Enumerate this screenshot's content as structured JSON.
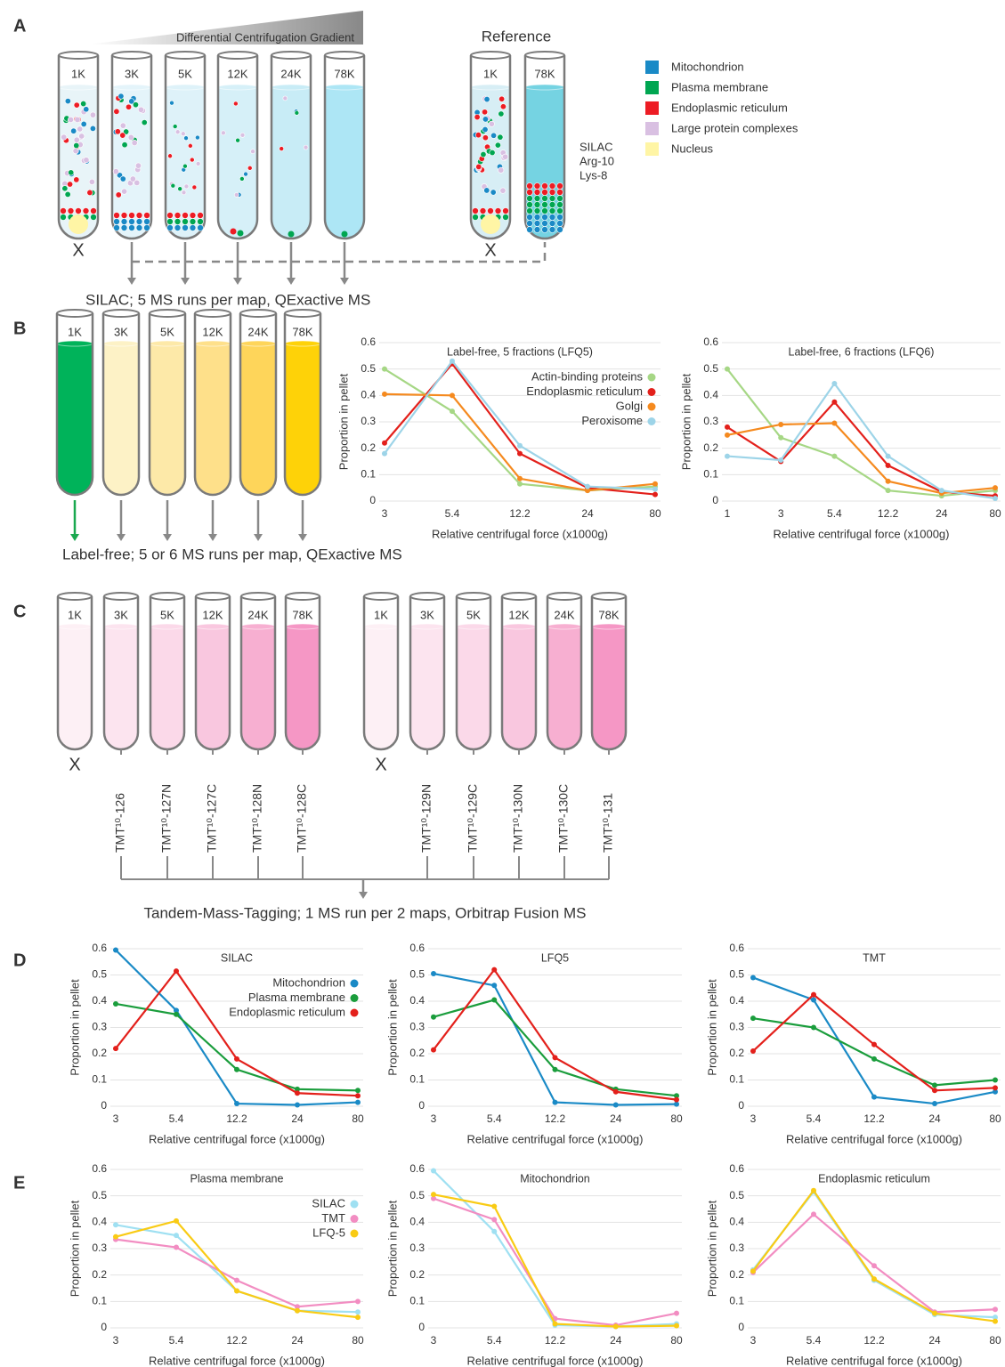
{
  "panel_labels": [
    "A",
    "B",
    "C",
    "D",
    "E"
  ],
  "panel_a": {
    "gradient_label": "Differential Centrifugation Gradient",
    "reference_label": "Reference",
    "tubes": [
      "1K",
      "3K",
      "5K",
      "12K",
      "24K",
      "78K"
    ],
    "reference_tubes": [
      "1K",
      "78K"
    ],
    "excluded_mark": "X",
    "legend": [
      {
        "name": "Mitochondrion",
        "color": "#1a8ac6"
      },
      {
        "name": "Plasma membrane",
        "color": "#00a651"
      },
      {
        "name": "Endoplasmic reticulum",
        "color": "#ed1c24"
      },
      {
        "name": "Large protein complexes",
        "color": "#d9c0e2"
      },
      {
        "name": "Nucleus",
        "color": "#fff5a5"
      }
    ],
    "silac_label": [
      "SILAC",
      "Arg-10",
      "Lys-8"
    ],
    "caption": "SILAC; 5 MS runs per map, QExactive MS"
  },
  "panel_b": {
    "tubes": [
      "1K",
      "3K",
      "5K",
      "12K",
      "24K",
      "78K"
    ],
    "caption": "Label-free; 5 or 6 MS runs per map, QExactive MS"
  },
  "panel_c": {
    "tubes_left": [
      "1K",
      "3K",
      "5K",
      "12K",
      "24K",
      "78K"
    ],
    "tubes_right": [
      "1K",
      "3K",
      "5K",
      "12K",
      "24K",
      "78K"
    ],
    "excluded_mark": "X",
    "tmt_left": [
      "TMT¹⁰-126",
      "TMT¹⁰-127N",
      "TMT¹⁰-127C",
      "TMT¹⁰-128N",
      "TMT¹⁰-128C"
    ],
    "tmt_right": [
      "TMT¹⁰-129N",
      "TMT¹⁰-129C",
      "TMT¹⁰-130N",
      "TMT¹⁰-130C",
      "TMT¹⁰-131"
    ],
    "caption": "Tandem-Mass-Tagging; 1 MS run per 2 maps, Orbitrap Fusion MS"
  },
  "chart_data": [
    {
      "type": "line",
      "title": "Label-free, 5 fractions (LFQ5)",
      "xlabel": "Relative centrifugal force (x1000g)",
      "ylabel": "Proportion in pellet",
      "categories": [
        "3",
        "5.4",
        "12.2",
        "24",
        "80"
      ],
      "ylim": [
        0,
        0.6
      ],
      "yticks": [
        0,
        0.1,
        0.2,
        0.3,
        0.4,
        0.5,
        0.6
      ],
      "grid": true,
      "legend": "upper right",
      "series": [
        {
          "name": "Actin-binding proteins",
          "color": "#a6d785",
          "values": [
            0.5,
            0.34,
            0.065,
            0.04,
            0.055
          ]
        },
        {
          "name": "Endoplasmic reticulum",
          "color": "#e3201b",
          "values": [
            0.22,
            0.52,
            0.18,
            0.05,
            0.025
          ]
        },
        {
          "name": "Golgi",
          "color": "#f58a1f",
          "values": [
            0.405,
            0.4,
            0.085,
            0.04,
            0.065
          ]
        },
        {
          "name": "Peroxisome",
          "color": "#9dd4e8",
          "values": [
            0.18,
            0.53,
            0.21,
            0.055,
            0.045
          ]
        }
      ]
    },
    {
      "type": "line",
      "title": "Label-free, 6 fractions (LFQ6)",
      "xlabel": "Relative centrifugal force (x1000g)",
      "ylabel": "Proportion in pellet",
      "categories": [
        "1",
        "3",
        "5.4",
        "12.2",
        "24",
        "80"
      ],
      "ylim": [
        0,
        0.6
      ],
      "yticks": [
        0,
        0.1,
        0.2,
        0.3,
        0.4,
        0.5,
        0.6
      ],
      "grid": true,
      "series": [
        {
          "color": "#a6d785",
          "values": [
            0.5,
            0.24,
            0.17,
            0.04,
            0.02,
            0.04
          ]
        },
        {
          "color": "#e3201b",
          "values": [
            0.28,
            0.15,
            0.375,
            0.135,
            0.035,
            0.02
          ]
        },
        {
          "color": "#f58a1f",
          "values": [
            0.25,
            0.29,
            0.295,
            0.075,
            0.03,
            0.05
          ]
        },
        {
          "color": "#9dd4e8",
          "values": [
            0.17,
            0.155,
            0.445,
            0.17,
            0.04,
            0.01
          ]
        }
      ]
    },
    {
      "type": "line",
      "title": "SILAC",
      "xlabel": "Relative centrifugal force (x1000g)",
      "ylabel": "Proportion in pellet",
      "categories": [
        "3",
        "5.4",
        "12.2",
        "24",
        "80"
      ],
      "ylim": [
        0,
        0.6
      ],
      "yticks": [
        0,
        0.1,
        0.2,
        0.3,
        0.4,
        0.5,
        0.6
      ],
      "grid": true,
      "legend": "upper right",
      "series": [
        {
          "name": "Mitochondrion",
          "color": "#1a8ac6",
          "values": [
            0.595,
            0.365,
            0.01,
            0.005,
            0.015
          ]
        },
        {
          "name": "Plasma membrane",
          "color": "#1a9d3c",
          "values": [
            0.39,
            0.35,
            0.14,
            0.065,
            0.06
          ]
        },
        {
          "name": "Endoplasmic reticulum",
          "color": "#e3201b",
          "values": [
            0.22,
            0.515,
            0.18,
            0.05,
            0.04
          ]
        }
      ]
    },
    {
      "type": "line",
      "title": "LFQ5",
      "xlabel": "Relative centrifugal force (x1000g)",
      "ylabel": "Proportion in pellet",
      "categories": [
        "3",
        "5.4",
        "12.2",
        "24",
        "80"
      ],
      "ylim": [
        0,
        0.6
      ],
      "yticks": [
        0,
        0.1,
        0.2,
        0.3,
        0.4,
        0.5,
        0.6
      ],
      "grid": true,
      "series": [
        {
          "color": "#1a8ac6",
          "values": [
            0.505,
            0.46,
            0.015,
            0.005,
            0.008
          ]
        },
        {
          "color": "#1a9d3c",
          "values": [
            0.34,
            0.405,
            0.14,
            0.065,
            0.04
          ]
        },
        {
          "color": "#e3201b",
          "values": [
            0.215,
            0.52,
            0.185,
            0.055,
            0.025
          ]
        }
      ]
    },
    {
      "type": "line",
      "title": "TMT",
      "xlabel": "Relative centrifugal force (x1000g)",
      "ylabel": "Proportion in pellet",
      "categories": [
        "3",
        "5.4",
        "12.2",
        "24",
        "80"
      ],
      "ylim": [
        0,
        0.6
      ],
      "yticks": [
        0,
        0.1,
        0.2,
        0.3,
        0.4,
        0.5,
        0.6
      ],
      "grid": true,
      "series": [
        {
          "color": "#1a8ac6",
          "values": [
            0.49,
            0.405,
            0.035,
            0.01,
            0.055
          ]
        },
        {
          "color": "#1a9d3c",
          "values": [
            0.335,
            0.3,
            0.18,
            0.08,
            0.1
          ]
        },
        {
          "color": "#e3201b",
          "values": [
            0.21,
            0.425,
            0.235,
            0.06,
            0.07
          ]
        }
      ]
    },
    {
      "type": "line",
      "title": "Plasma membrane",
      "xlabel": "Relative centrifugal force (x1000g)",
      "ylabel": "Proportion in pellet",
      "categories": [
        "3",
        "5.4",
        "12.2",
        "24",
        "80"
      ],
      "ylim": [
        0,
        0.6
      ],
      "yticks": [
        0,
        0.1,
        0.2,
        0.3,
        0.4,
        0.5,
        0.6
      ],
      "grid": true,
      "legend": "upper right",
      "series": [
        {
          "name": "SILAC",
          "color": "#9fe0f2",
          "values": [
            0.39,
            0.35,
            0.14,
            0.065,
            0.06
          ]
        },
        {
          "name": "TMT",
          "color": "#f28dc2",
          "values": [
            0.335,
            0.305,
            0.18,
            0.08,
            0.1
          ]
        },
        {
          "name": "LFQ-5",
          "color": "#f9cb14",
          "values": [
            0.345,
            0.405,
            0.14,
            0.065,
            0.04
          ]
        }
      ]
    },
    {
      "type": "line",
      "title": "Mitochondrion",
      "xlabel": "Relative centrifugal force (x1000g)",
      "ylabel": "Proportion in pellet",
      "categories": [
        "3",
        "5.4",
        "12.2",
        "24",
        "80"
      ],
      "ylim": [
        0,
        0.6
      ],
      "yticks": [
        0,
        0.1,
        0.2,
        0.3,
        0.4,
        0.5,
        0.6
      ],
      "grid": true,
      "series": [
        {
          "color": "#9fe0f2",
          "values": [
            0.595,
            0.365,
            0.01,
            0.005,
            0.015
          ]
        },
        {
          "color": "#f28dc2",
          "values": [
            0.49,
            0.41,
            0.035,
            0.01,
            0.055
          ]
        },
        {
          "color": "#f9cb14",
          "values": [
            0.505,
            0.46,
            0.015,
            0.005,
            0.008
          ]
        }
      ]
    },
    {
      "type": "line",
      "title": "Endoplasmic reticulum",
      "xlabel": "Relative centrifugal force (x1000g)",
      "ylabel": "Proportion in pellet",
      "categories": [
        "3",
        "5.4",
        "12.2",
        "24",
        "80"
      ],
      "ylim": [
        0,
        0.6
      ],
      "yticks": [
        0,
        0.1,
        0.2,
        0.3,
        0.4,
        0.5,
        0.6
      ],
      "grid": true,
      "series": [
        {
          "color": "#9fe0f2",
          "values": [
            0.22,
            0.515,
            0.18,
            0.05,
            0.04
          ]
        },
        {
          "color": "#f28dc2",
          "values": [
            0.21,
            0.43,
            0.235,
            0.06,
            0.07
          ]
        },
        {
          "color": "#f9cb14",
          "values": [
            0.215,
            0.52,
            0.185,
            0.055,
            0.025
          ]
        }
      ]
    }
  ]
}
